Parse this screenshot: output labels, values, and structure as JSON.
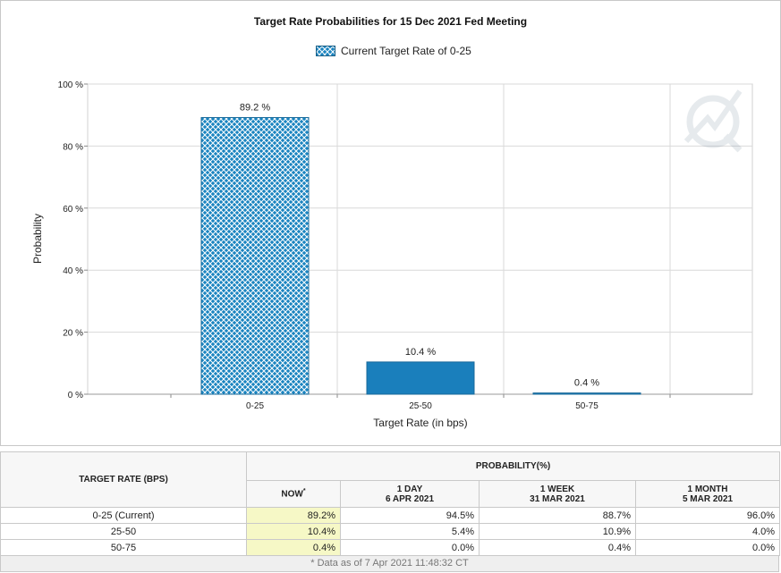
{
  "chart_data": {
    "type": "bar",
    "title": "Target Rate Probabilities for 15 Dec 2021 Fed Meeting",
    "legend": "Current Target Rate of 0-25",
    "legend_position": "top-center",
    "xlabel": "Target Rate (in bps)",
    "ylabel": "Probability",
    "categories": [
      "0-25",
      "25-50",
      "50-75"
    ],
    "values": [
      89.2,
      10.4,
      0.4
    ],
    "value_labels": [
      "89.2 %",
      "10.4 %",
      "0.4 %"
    ],
    "ylim": [
      0,
      100
    ],
    "yticks": [
      0,
      20,
      40,
      60,
      80,
      100
    ],
    "ytick_labels": [
      "0 %",
      "20 %",
      "40 %",
      "60 %",
      "80 %",
      "100 %"
    ],
    "grid": true,
    "colors": {
      "current_bar": "#1a84c0",
      "other_bar": "#1a7fbc",
      "pattern_line": "#ffffff"
    }
  },
  "table": {
    "header_target_rate": "TARGET RATE (BPS)",
    "header_probability": "PROBABILITY(%)",
    "col_now": "NOW",
    "col_now_mark": "*",
    "col_1day": "1 DAY",
    "col_1day_date": "6 APR 2021",
    "col_1week": "1 WEEK",
    "col_1week_date": "31 MAR 2021",
    "col_1month": "1 MONTH",
    "col_1month_date": "5 MAR 2021",
    "rows": [
      {
        "rate": "0-25 (Current)",
        "now": "89.2%",
        "day": "94.5%",
        "week": "88.7%",
        "month": "96.0%"
      },
      {
        "rate": "25-50",
        "now": "10.4%",
        "day": "5.4%",
        "week": "10.9%",
        "month": "4.0%"
      },
      {
        "rate": "50-75",
        "now": "0.4%",
        "day": "0.0%",
        "week": "0.4%",
        "month": "0.0%"
      }
    ],
    "footnote": "* Data as of 7 Apr 2021 11:48:32 CT"
  }
}
